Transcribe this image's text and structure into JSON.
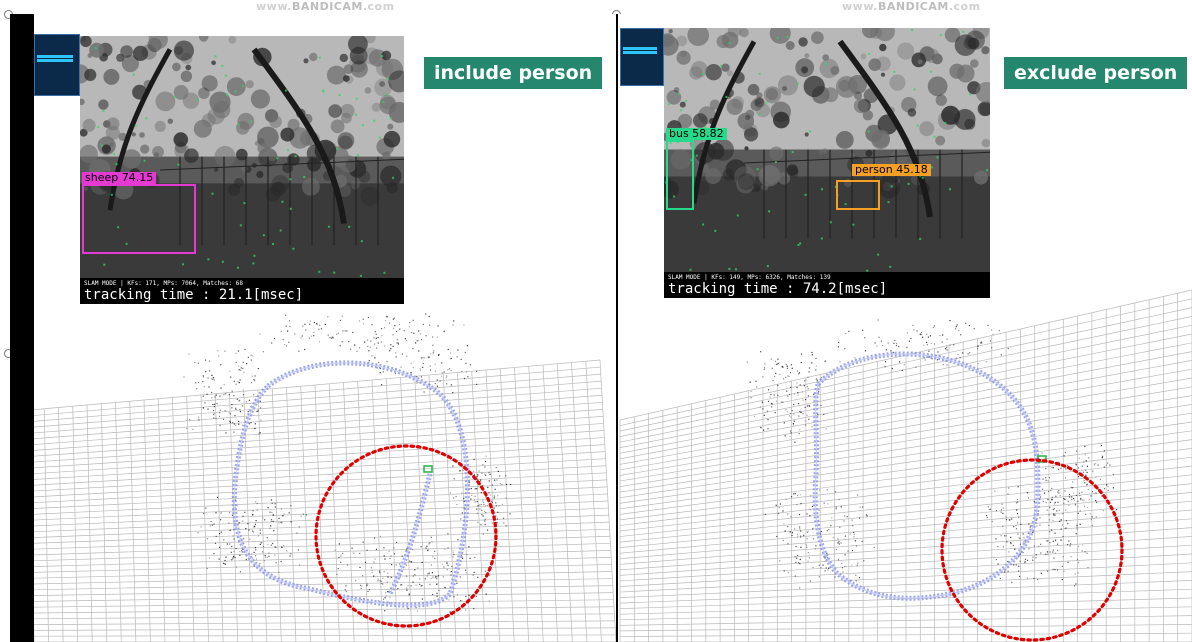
{
  "watermark": {
    "prefix": "www.",
    "brand": "BANDICAM",
    "suffix": ".com"
  },
  "panels": [
    {
      "id": "left",
      "label": "include person",
      "status_line": "SLAM MODE |  KFs: 171, MPs: 7064, Matches: 68",
      "tracking": "tracking time : 21.1[msec]",
      "detections": [
        {
          "label": "sheep 74.15",
          "color": "#e53ad1"
        }
      ]
    },
    {
      "id": "right",
      "label": "exclude person",
      "status_line": "SLAM MODE |  KFs: 149, MPs: 6326, Matches: 139",
      "tracking": "tracking time : 74.2[msec]",
      "detections": [
        {
          "label": "bus 58.82",
          "color": "#27d98a"
        },
        {
          "label": "person 45.18",
          "color": "#f3a024"
        }
      ]
    }
  ],
  "colors": {
    "badge": "#24876e",
    "trajectory": "#8b95e6",
    "loop_marker": "#e00000",
    "grid": "#b9b9b9"
  }
}
